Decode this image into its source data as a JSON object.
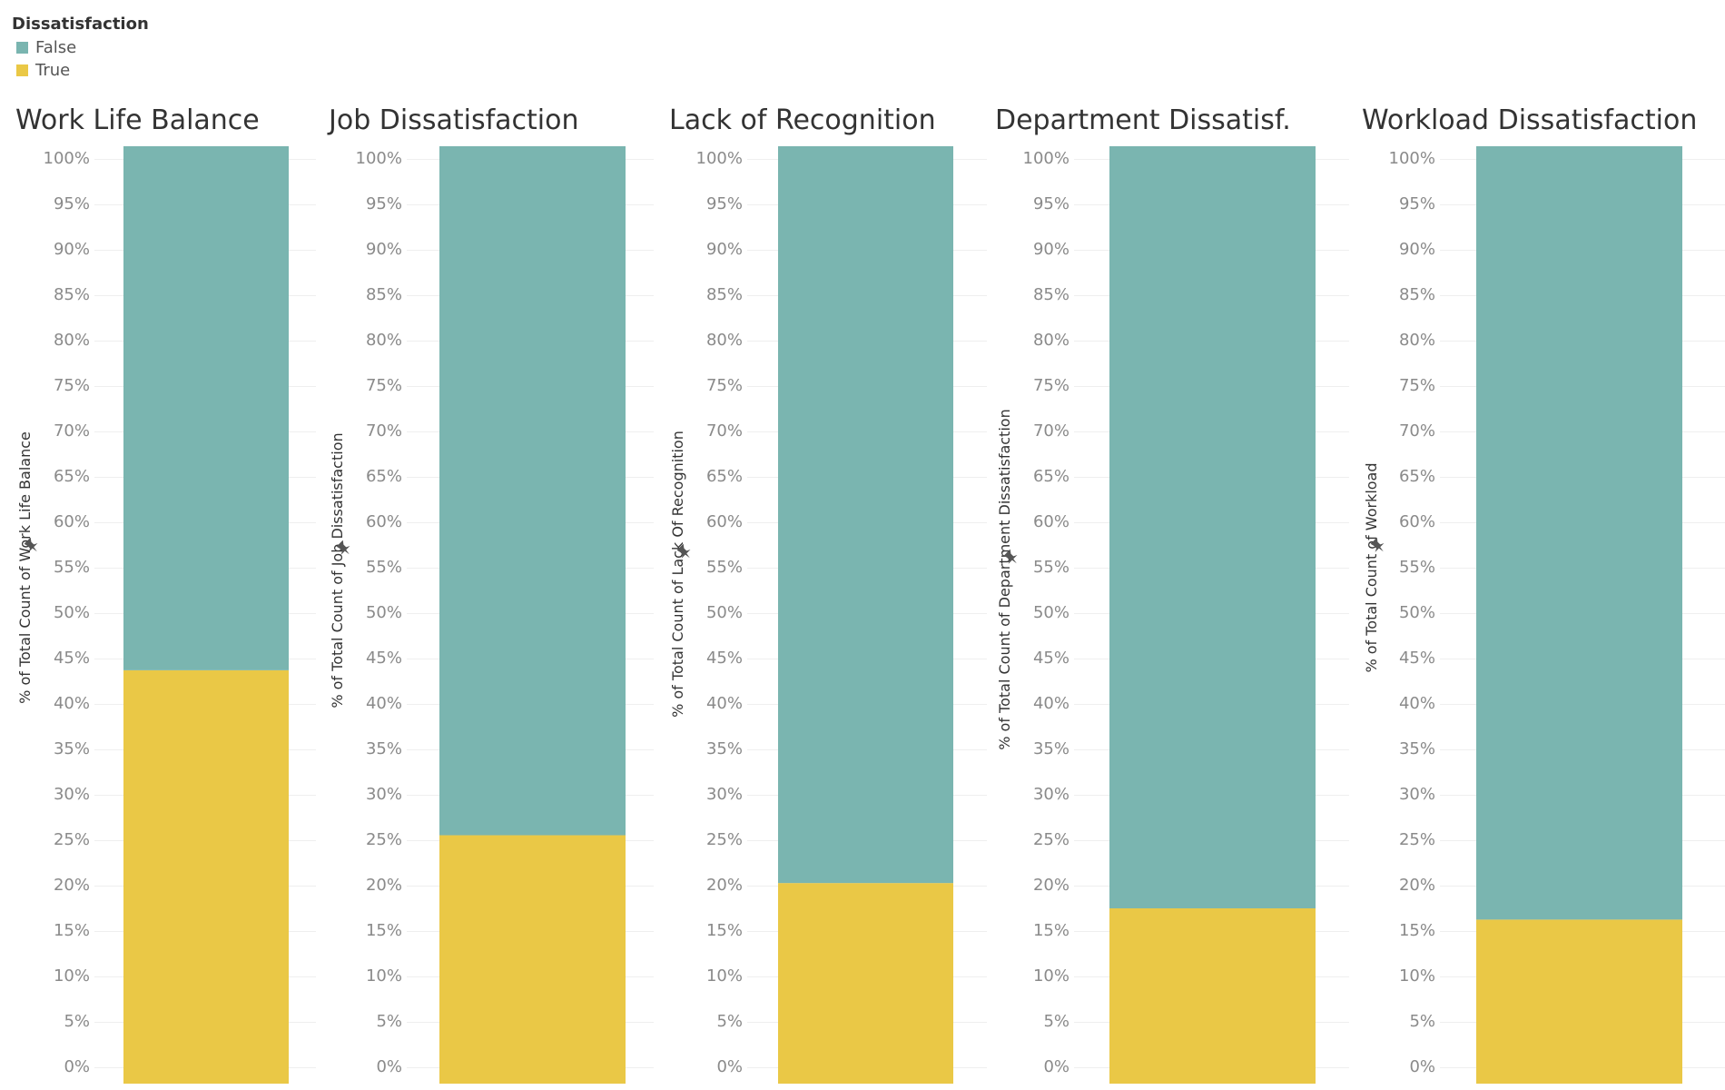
{
  "legend": {
    "title": "Dissatisfaction",
    "items": [
      {
        "label": "False",
        "color": "#7ab5b0"
      },
      {
        "label": "True",
        "color": "#eac846"
      }
    ]
  },
  "chart_data": [
    {
      "type": "bar",
      "stacked": true,
      "title": "Work Life Balance",
      "ylabel": "% of Total Count of Work Life Balance",
      "ylim": [
        0,
        100
      ],
      "yticks": [
        "0%",
        "5%",
        "10%",
        "15%",
        "20%",
        "25%",
        "30%",
        "35%",
        "40%",
        "45%",
        "50%",
        "55%",
        "60%",
        "65%",
        "70%",
        "75%",
        "80%",
        "85%",
        "90%",
        "95%",
        "100%"
      ],
      "series": [
        {
          "name": "True",
          "values": [
            44.1
          ]
        },
        {
          "name": "False",
          "values": [
            55.9
          ]
        }
      ]
    },
    {
      "type": "bar",
      "stacked": true,
      "title": "Job Dissatisfaction",
      "ylabel": "% of Total Count of Job Dissatisfaction",
      "ylim": [
        0,
        100
      ],
      "yticks": [
        "0%",
        "5%",
        "10%",
        "15%",
        "20%",
        "25%",
        "30%",
        "35%",
        "40%",
        "45%",
        "50%",
        "55%",
        "60%",
        "65%",
        "70%",
        "75%",
        "80%",
        "85%",
        "90%",
        "95%",
        "100%"
      ],
      "series": [
        {
          "name": "True",
          "values": [
            26.5
          ]
        },
        {
          "name": "False",
          "values": [
            73.5
          ]
        }
      ]
    },
    {
      "type": "bar",
      "stacked": true,
      "title": "Lack of Recognition",
      "ylabel": "% of Total Count of Lack Of Recognition",
      "ylim": [
        0,
        100
      ],
      "yticks": [
        "0%",
        "5%",
        "10%",
        "15%",
        "20%",
        "25%",
        "30%",
        "35%",
        "40%",
        "45%",
        "50%",
        "55%",
        "60%",
        "65%",
        "70%",
        "75%",
        "80%",
        "85%",
        "90%",
        "95%",
        "100%"
      ],
      "series": [
        {
          "name": "True",
          "values": [
            21.4
          ]
        },
        {
          "name": "False",
          "values": [
            78.6
          ]
        }
      ]
    },
    {
      "type": "bar",
      "stacked": true,
      "title": "Department Dissatisf.",
      "ylabel": "% of Total Count of Department Dissatisfaction",
      "ylim": [
        0,
        100
      ],
      "yticks": [
        "0%",
        "5%",
        "10%",
        "15%",
        "20%",
        "25%",
        "30%",
        "35%",
        "40%",
        "45%",
        "50%",
        "55%",
        "60%",
        "65%",
        "70%",
        "75%",
        "80%",
        "85%",
        "90%",
        "95%",
        "100%"
      ],
      "series": [
        {
          "name": "True",
          "values": [
            18.7
          ]
        },
        {
          "name": "False",
          "values": [
            81.3
          ]
        }
      ]
    },
    {
      "type": "bar",
      "stacked": true,
      "title": "Workload Dissatisfaction",
      "ylabel": "% of Total Count of Workload",
      "ylim": [
        0,
        100
      ],
      "yticks": [
        "0%",
        "5%",
        "10%",
        "15%",
        "20%",
        "25%",
        "30%",
        "35%",
        "40%",
        "45%",
        "50%",
        "55%",
        "60%",
        "65%",
        "70%",
        "75%",
        "80%",
        "85%",
        "90%",
        "95%",
        "100%"
      ],
      "series": [
        {
          "name": "True",
          "values": [
            17.5
          ]
        },
        {
          "name": "False",
          "values": [
            82.5
          ]
        }
      ]
    }
  ]
}
